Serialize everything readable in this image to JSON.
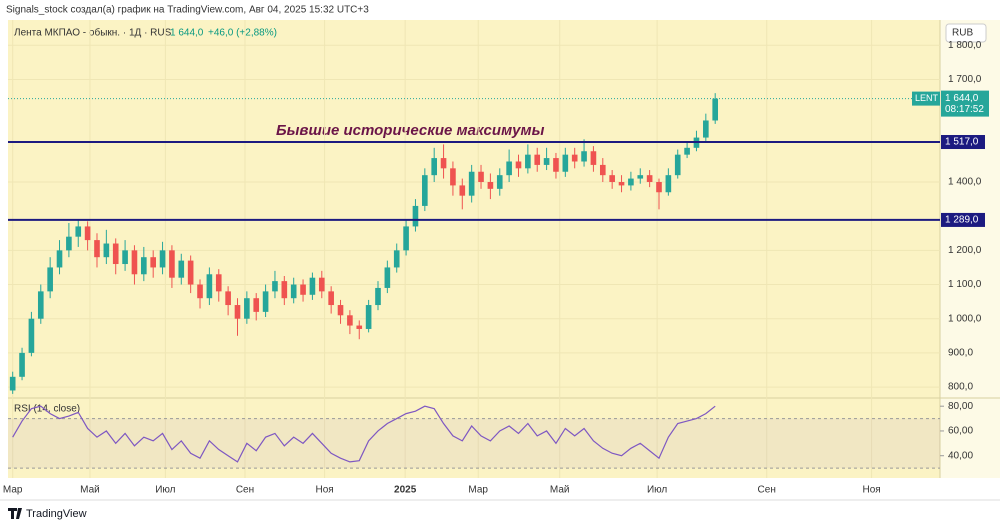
{
  "header": {
    "credit": "Signals_stock создал(а) график на TradingView.com, Авг 04, 2025 15:32 UTC+3",
    "currency": "RUB"
  },
  "footer": {
    "brand": "TradingView"
  },
  "chart_data": [
    {
      "type": "candlestick",
      "symbol": "Лента МКПАО - обыкн. · 1Д · RUS",
      "ticker": "LENT",
      "last_price": {
        "value": 1644,
        "label": "1 644,0"
      },
      "change": "+46,0 (+2,88%)",
      "countdown": "08:17:52",
      "annotation": "Бывшие исторические максимумы",
      "up_color": "#26a69a",
      "down_color": "#ef5350",
      "levels": [
        {
          "value": 1517,
          "label": "1 517,0"
        },
        {
          "value": 1289,
          "label": "1 289,0"
        }
      ],
      "level_color": "#1c1a80",
      "xlim": [
        -0.5,
        99
      ],
      "xticks": [
        {
          "value": 0,
          "label": "Мар"
        },
        {
          "value": 8.25,
          "label": "Май"
        },
        {
          "value": 16.3,
          "label": "Июл"
        },
        {
          "value": 24.8,
          "label": "Сен"
        },
        {
          "value": 33.3,
          "label": "Ноя"
        },
        {
          "value": 41.9,
          "label": "2025"
        },
        {
          "value": 49.7,
          "label": "Мар"
        },
        {
          "value": 58.4,
          "label": "Май"
        },
        {
          "value": 68.8,
          "label": "Июл"
        },
        {
          "value": 80.5,
          "label": "Сен"
        },
        {
          "value": 91.7,
          "label": "Ноя"
        }
      ],
      "ylim": [
        768,
        1874
      ],
      "yticks": [
        {
          "value": 800,
          "label": "800,0"
        },
        {
          "value": 900,
          "label": "900,0"
        },
        {
          "value": 1000,
          "label": "1 000,0"
        },
        {
          "value": 1100,
          "label": "1 100,0"
        },
        {
          "value": 1200,
          "label": "1 200,0"
        },
        {
          "value": 1400,
          "label": "1 400,0"
        },
        {
          "value": 1700,
          "label": "1 700,0"
        },
        {
          "value": 1800,
          "label": "1 800,0"
        }
      ],
      "open": [
        790,
        830,
        900,
        1000,
        1080,
        1150,
        1200,
        1240,
        1270,
        1230,
        1180,
        1220,
        1160,
        1200,
        1130,
        1180,
        1150,
        1200,
        1120,
        1170,
        1100,
        1060,
        1130,
        1080,
        1040,
        1000,
        1060,
        1020,
        1080,
        1110,
        1060,
        1100,
        1070,
        1120,
        1080,
        1040,
        1010,
        980,
        970,
        1040,
        1090,
        1150,
        1200,
        1270,
        1330,
        1420,
        1470,
        1440,
        1390,
        1360,
        1430,
        1400,
        1380,
        1420,
        1460,
        1440,
        1480,
        1450,
        1470,
        1430,
        1480,
        1460,
        1490,
        1450,
        1420,
        1400,
        1390,
        1410,
        1420,
        1400,
        1370,
        1420,
        1480,
        1500,
        1530,
        1580
      ],
      "high": [
        845,
        915,
        1020,
        1100,
        1180,
        1230,
        1280,
        1290,
        1285,
        1250,
        1260,
        1235,
        1230,
        1215,
        1210,
        1200,
        1225,
        1215,
        1190,
        1185,
        1115,
        1150,
        1145,
        1095,
        1060,
        1080,
        1075,
        1100,
        1140,
        1125,
        1120,
        1115,
        1135,
        1140,
        1095,
        1055,
        1025,
        995,
        1055,
        1110,
        1170,
        1220,
        1290,
        1350,
        1440,
        1500,
        1510,
        1460,
        1410,
        1450,
        1450,
        1425,
        1440,
        1495,
        1480,
        1510,
        1500,
        1500,
        1485,
        1500,
        1500,
        1525,
        1505,
        1470,
        1435,
        1420,
        1430,
        1440,
        1435,
        1410,
        1440,
        1495,
        1520,
        1550,
        1600,
        1660
      ],
      "low": [
        780,
        820,
        890,
        985,
        1060,
        1130,
        1180,
        1210,
        1200,
        1150,
        1160,
        1130,
        1140,
        1100,
        1110,
        1120,
        1130,
        1090,
        1100,
        1075,
        1030,
        1040,
        1050,
        1010,
        950,
        985,
        995,
        1005,
        1060,
        1040,
        1045,
        1050,
        1055,
        1060,
        1015,
        985,
        955,
        940,
        960,
        1025,
        1075,
        1135,
        1185,
        1255,
        1315,
        1400,
        1410,
        1360,
        1320,
        1340,
        1380,
        1350,
        1360,
        1400,
        1415,
        1425,
        1430,
        1435,
        1410,
        1415,
        1440,
        1445,
        1430,
        1400,
        1380,
        1370,
        1375,
        1395,
        1385,
        1320,
        1360,
        1410,
        1470,
        1490,
        1520,
        1570
      ],
      "close": [
        830,
        900,
        1000,
        1080,
        1150,
        1200,
        1240,
        1270,
        1230,
        1180,
        1220,
        1160,
        1200,
        1130,
        1180,
        1150,
        1200,
        1120,
        1170,
        1100,
        1060,
        1130,
        1080,
        1040,
        1000,
        1060,
        1020,
        1080,
        1110,
        1060,
        1100,
        1070,
        1120,
        1080,
        1040,
        1010,
        980,
        970,
        1040,
        1090,
        1150,
        1200,
        1270,
        1330,
        1420,
        1470,
        1440,
        1390,
        1360,
        1430,
        1400,
        1380,
        1420,
        1460,
        1440,
        1480,
        1450,
        1470,
        1430,
        1480,
        1460,
        1490,
        1450,
        1420,
        1400,
        1390,
        1410,
        1420,
        1400,
        1370,
        1420,
        1480,
        1500,
        1530,
        1580,
        1644
      ]
    },
    {
      "type": "line",
      "title": "RSI (14, close)",
      "color": "#7e57c2",
      "band": [
        30,
        70
      ],
      "xlim": [
        -0.5,
        99
      ],
      "ylim": [
        22,
        85
      ],
      "yticks": [
        {
          "value": 40,
          "label": "40,00"
        },
        {
          "value": 60,
          "label": "60,00"
        },
        {
          "value": 80,
          "label": "80,00"
        }
      ],
      "values": [
        55,
        68,
        78,
        80,
        74,
        70,
        72,
        75,
        62,
        55,
        60,
        50,
        58,
        48,
        55,
        52,
        58,
        45,
        52,
        42,
        38,
        52,
        45,
        40,
        35,
        50,
        44,
        55,
        58,
        48,
        55,
        50,
        58,
        50,
        42,
        38,
        35,
        36,
        52,
        60,
        66,
        70,
        74,
        76,
        80,
        78,
        66,
        56,
        52,
        64,
        56,
        52,
        60,
        64,
        58,
        66,
        56,
        60,
        50,
        62,
        56,
        62,
        52,
        46,
        42,
        40,
        46,
        50,
        44,
        38,
        55,
        66,
        68,
        70,
        74,
        80
      ]
    }
  ]
}
